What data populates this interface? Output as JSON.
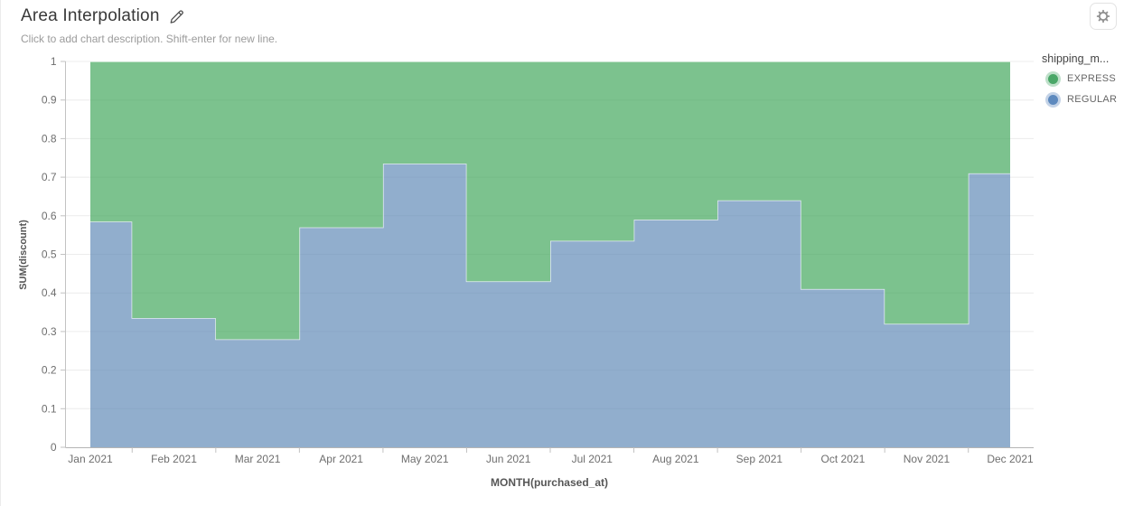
{
  "header": {
    "title": "Area Interpolation",
    "subtitle": "Click to add chart description. Shift-enter for new line."
  },
  "toolbar": {
    "settings_icon": "gear-icon",
    "edit_icon": "pencil-icon"
  },
  "legend": {
    "title": "shipping_m...",
    "items": [
      {
        "label": "EXPRESS",
        "color": "#49a767",
        "ring": "#bfe0ca"
      },
      {
        "label": "REGULAR",
        "color": "#5d89be",
        "ring": "#c4d3e7"
      }
    ]
  },
  "chart_data": {
    "type": "area",
    "title": "Area Interpolation",
    "interpolation": "step-middle",
    "stacked": true,
    "stack_order": [
      "REGULAR",
      "EXPRESS"
    ],
    "x": [
      "Jan 2021",
      "Feb 2021",
      "Mar 2021",
      "Apr 2021",
      "May 2021",
      "Jun 2021",
      "Jul 2021",
      "Aug 2021",
      "Sep 2021",
      "Oct 2021",
      "Nov 2021",
      "Dec 2021"
    ],
    "series": [
      {
        "name": "EXPRESS",
        "color": "#45a85e",
        "fill_opacity": 0.7,
        "values": [
          0.415,
          0.665,
          0.72,
          0.43,
          0.265,
          0.57,
          0.465,
          0.41,
          0.36,
          0.59,
          0.68,
          0.29
        ]
      },
      {
        "name": "REGULAR",
        "color": "#638cb8",
        "fill_opacity": 0.7,
        "values": [
          0.585,
          0.335,
          0.28,
          0.57,
          0.735,
          0.43,
          0.535,
          0.59,
          0.64,
          0.41,
          0.32,
          0.71
        ]
      }
    ],
    "xlabel": "MONTH(purchased_at)",
    "ylabel": "SUM(discount)",
    "ylim": [
      0,
      1
    ],
    "y_ticks": [
      0,
      0.1,
      0.2,
      0.3,
      0.4,
      0.5,
      0.6,
      0.7,
      0.8,
      0.9,
      1
    ],
    "y_tick_labels": [
      "0",
      "0.1",
      "0.2",
      "0.3",
      "0.4",
      "0.5",
      "0.6",
      "0.7",
      "0.8",
      "0.9",
      "1"
    ],
    "grid": true,
    "gridline_color": "#ececec",
    "axis_line_color": "#c2c2c2",
    "boundary_line_color": "rgba(255,255,255,0.75)",
    "legend_position": "right"
  }
}
